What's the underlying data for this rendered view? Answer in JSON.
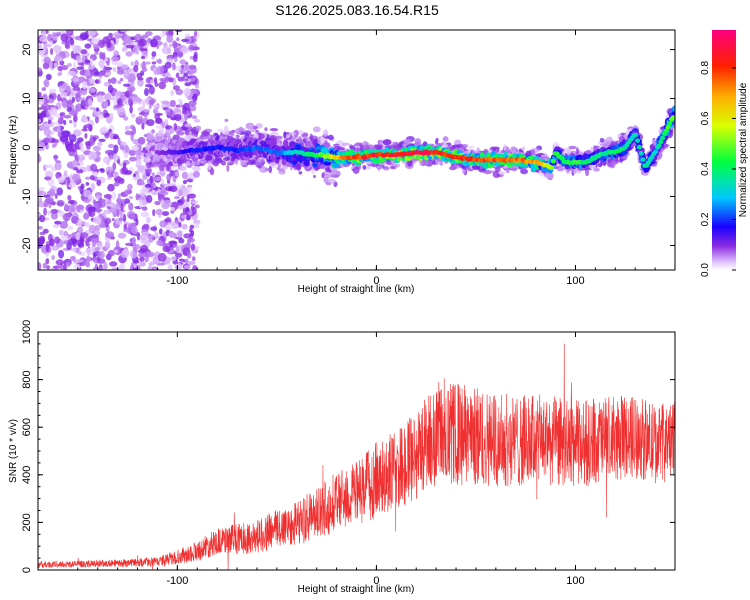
{
  "chart_data": [
    {
      "type": "heatmap",
      "title": "S126.2025.083.16.54.R15",
      "xlabel": "Height of straight line (km)",
      "ylabel": "Frequency (Hz)",
      "xlim": [
        -170,
        150
      ],
      "ylim": [
        -25,
        24
      ],
      "xticks": [
        -100,
        0,
        100
      ],
      "yticks": [
        -20,
        -10,
        0,
        10,
        20
      ],
      "colorbar": {
        "label": "Normalized spectral amplitude",
        "range": [
          0,
          0.95
        ],
        "ticks": [
          0.0,
          0.2,
          0.4,
          0.6,
          0.8
        ],
        "tick_labels": [
          "0.0",
          "0.2",
          "0.4",
          "0.6",
          "0.8"
        ]
      },
      "ridge": {
        "x": [
          -110,
          -100,
          -90,
          -80,
          -70,
          -60,
          -50,
          -40,
          -30,
          -20,
          -10,
          0,
          10,
          20,
          30,
          40,
          50,
          60,
          70,
          80,
          88,
          90,
          95,
          100,
          105,
          110,
          115,
          120,
          125,
          130,
          135,
          140,
          145,
          150
        ],
        "freq": [
          -1,
          -1,
          -0.5,
          0,
          -0.5,
          0,
          -1,
          -1,
          -1.5,
          -2,
          -2,
          -1.5,
          -1.5,
          -1,
          -1,
          -2,
          -2.5,
          -2.5,
          -2.5,
          -3,
          -4,
          -1,
          -3,
          -3,
          -3,
          -2,
          -1,
          -1,
          0,
          3,
          -4,
          -1,
          3,
          7
        ],
        "amplitude": [
          0.1,
          0.15,
          0.2,
          0.2,
          0.2,
          0.25,
          0.25,
          0.35,
          0.45,
          0.7,
          0.85,
          0.9,
          0.9,
          0.95,
          0.9,
          0.9,
          0.85,
          0.8,
          0.8,
          0.75,
          0.6,
          0.45,
          0.45,
          0.5,
          0.45,
          0.4,
          0.4,
          0.45,
          0.4,
          0.35,
          0.4,
          0.35,
          0.45,
          0.55
        ]
      }
    },
    {
      "type": "line",
      "xlabel": "Height of straight line (km)",
      "ylabel": "SNR (10 * v/v)",
      "xlim": [
        -170,
        150
      ],
      "ylim": [
        0,
        1000
      ],
      "xticks": [
        -100,
        0,
        100
      ],
      "yticks": [
        0,
        200,
        400,
        600,
        800,
        1000
      ],
      "color": "#f03030",
      "envelope": {
        "x": [
          -170,
          -150,
          -130,
          -110,
          -100,
          -90,
          -80,
          -70,
          -60,
          -50,
          -40,
          -30,
          -20,
          -10,
          0,
          10,
          20,
          25,
          30,
          40,
          50,
          60,
          70,
          80,
          90,
          100,
          110,
          120,
          130,
          140,
          150
        ],
        "mean": [
          22,
          25,
          28,
          35,
          55,
          80,
          120,
          130,
          140,
          175,
          200,
          230,
          290,
          320,
          380,
          420,
          480,
          540,
          560,
          570,
          560,
          550,
          540,
          550,
          540,
          530,
          540,
          550,
          560,
          530,
          540
        ],
        "spread": [
          14,
          14,
          16,
          20,
          30,
          45,
          55,
          65,
          70,
          85,
          95,
          110,
          125,
          140,
          160,
          170,
          190,
          200,
          210,
          220,
          210,
          200,
          195,
          190,
          190,
          185,
          185,
          180,
          175,
          170,
          165
        ]
      }
    }
  ]
}
